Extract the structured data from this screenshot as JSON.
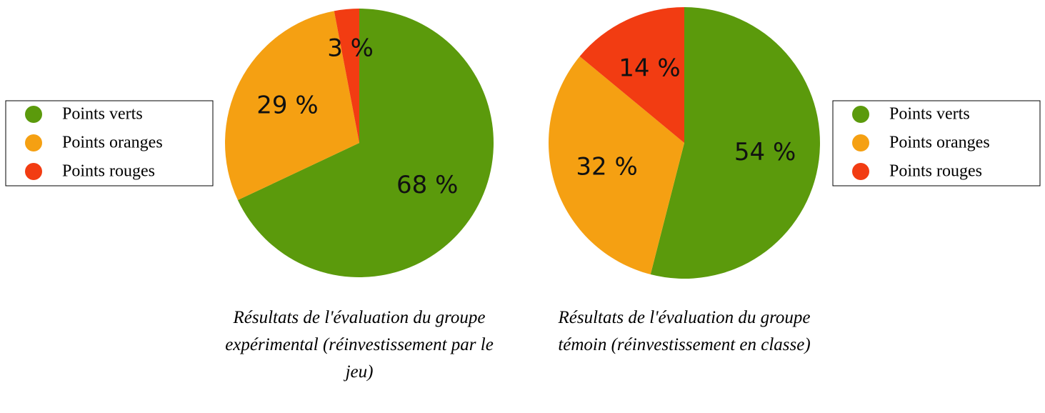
{
  "chart_data": [
    {
      "type": "pie",
      "title": "Résultats de l'évaluation du groupe expérimental (réinvestissement par le jeu)",
      "categories": [
        "Points verts",
        "Points oranges",
        "Points rouges"
      ],
      "values": [
        68,
        29,
        3
      ],
      "value_labels": [
        "68 %",
        "29 %",
        "3 %"
      ],
      "colors": [
        "#5b9a0c",
        "#f5a012",
        "#f23c12"
      ],
      "legend": "left"
    },
    {
      "type": "pie",
      "title": "Résultats de l'évaluation du groupe témoin (réinvestissement en classe)",
      "categories": [
        "Points verts",
        "Points oranges",
        "Points rouges"
      ],
      "values": [
        54,
        32,
        14
      ],
      "value_labels": [
        "54 %",
        "32 %",
        "14 %"
      ],
      "colors": [
        "#5b9a0c",
        "#f5a012",
        "#f23c12"
      ],
      "legend": "right"
    }
  ]
}
